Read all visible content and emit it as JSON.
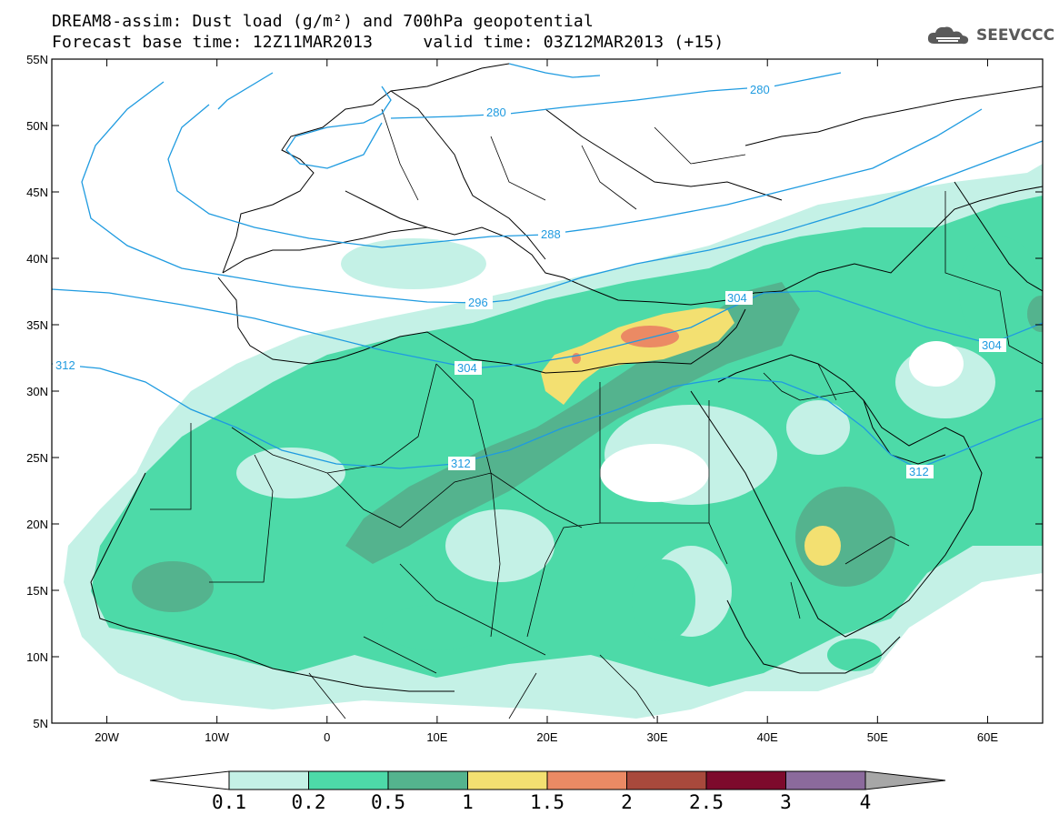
{
  "header": {
    "title_line1": "DREAM8-assim: Dust load (g/m²) and 700hPa geopotential",
    "title_line2": "Forecast base time: 12Z11MAR2013     valid time: 03Z12MAR2013 (+15)"
  },
  "logo": {
    "text": "SEEVCCC",
    "icon": "cloud-icon"
  },
  "map": {
    "lat_range": [
      5,
      55
    ],
    "lon_range": [
      -25,
      65
    ],
    "lat_labels": [
      "55N",
      "50N",
      "45N",
      "40N",
      "35N",
      "30N",
      "25N",
      "20N",
      "15N",
      "10N",
      "5N"
    ],
    "lon_labels": [
      "20W",
      "10W",
      "0",
      "10E",
      "20E",
      "30E",
      "40E",
      "50E",
      "60E"
    ],
    "contour_labels": [
      "280",
      "280",
      "288",
      "296",
      "304",
      "304",
      "312",
      "312",
      "312",
      "304"
    ],
    "contour_color": "#1f9be0"
  },
  "colorbar": {
    "levels": [
      "0.1",
      "0.2",
      "0.5",
      "1",
      "1.5",
      "2",
      "2.5",
      "3",
      "4"
    ],
    "colors": [
      "#c4f1e6",
      "#4ddaa8",
      "#54b38e",
      "#f3e071",
      "#eb8a64",
      "#a8493c",
      "#7d0a2c",
      "#8b6a9c",
      "#a7a7a7"
    ]
  }
}
